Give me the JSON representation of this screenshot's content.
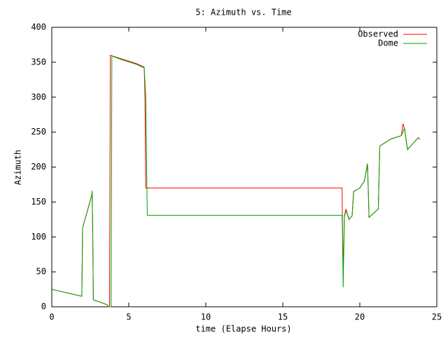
{
  "chart_data": {
    "type": "line",
    "title": "5: Azimuth vs. Time",
    "xlabel": "time (Elapse Hours)",
    "ylabel": "Azimuth",
    "xlim": [
      0,
      25
    ],
    "xticks": [
      0,
      5,
      10,
      15,
      20,
      25
    ],
    "ylim": [
      0,
      400
    ],
    "yticks": [
      0,
      50,
      100,
      150,
      200,
      250,
      300,
      350,
      400
    ],
    "legend": "upper right",
    "series": [
      {
        "name": "Observed",
        "color": "#ff0000",
        "x": [
          0,
          1.95,
          2.0,
          2.6,
          2.62,
          2.65,
          2.7,
          3.6,
          3.7,
          3.75,
          3.8,
          4.5,
          5.5,
          6.0,
          6.05,
          6.1,
          18.85,
          18.88,
          18.92,
          19.0,
          19.1,
          19.3,
          19.5,
          19.6,
          20.0,
          20.3,
          20.5,
          20.6,
          21.2,
          21.3,
          22.0,
          22.7,
          22.8,
          22.9,
          23.1,
          23.5,
          23.8,
          23.9
        ],
        "values": [
          25,
          15,
          113,
          160,
          166,
          120,
          10,
          3,
          0,
          0,
          360,
          355,
          348,
          343,
          300,
          170,
          170,
          105,
          55,
          130,
          140,
          125,
          130,
          165,
          170,
          180,
          205,
          128,
          140,
          230,
          240,
          245,
          262,
          255,
          225,
          235,
          242,
          240
        ]
      },
      {
        "name": "Dome",
        "color": "#00a000",
        "x": [
          0,
          1.95,
          2.0,
          2.6,
          2.62,
          2.65,
          2.7,
          3.6,
          3.7,
          3.85,
          3.9,
          4.5,
          5.5,
          6.0,
          6.1,
          6.2,
          18.85,
          18.88,
          18.92,
          19.0,
          19.1,
          19.3,
          19.5,
          19.6,
          20.0,
          20.3,
          20.5,
          20.6,
          21.2,
          21.3,
          22.0,
          22.7,
          22.8,
          22.9,
          23.1,
          23.5,
          23.8,
          23.9
        ],
        "values": [
          25,
          15,
          113,
          160,
          165,
          120,
          10,
          3,
          0,
          0,
          359,
          354,
          347,
          342,
          300,
          131,
          131,
          105,
          28,
          128,
          138,
          125,
          130,
          165,
          170,
          180,
          205,
          128,
          140,
          230,
          240,
          245,
          250,
          256,
          225,
          235,
          242,
          240
        ]
      }
    ]
  }
}
